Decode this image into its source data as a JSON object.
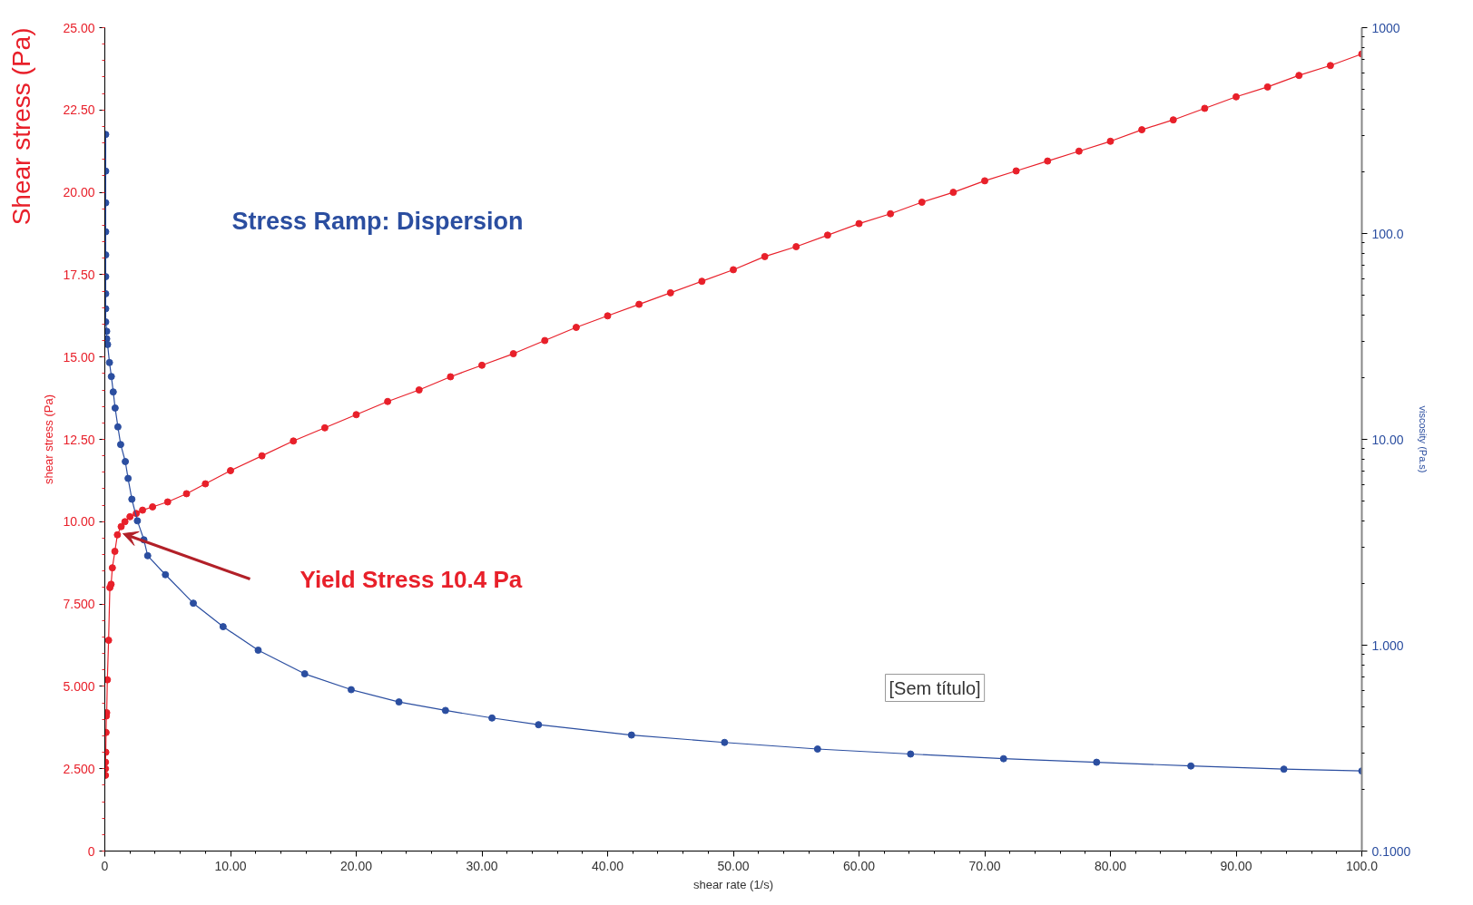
{
  "chart_data": {
    "type": "line",
    "xlabel": "shear rate (1/s)",
    "ylabel": "shear stress (Pa)",
    "y2label": "viscosity (Pa.s)",
    "xlim": [
      0,
      100
    ],
    "xticks": [
      0,
      {
        "value": 10,
        "label": "10.00"
      },
      {
        "value": 20,
        "label": "20.00"
      },
      {
        "value": 30,
        "label": "30.00"
      },
      {
        "value": 40,
        "label": "40.00"
      },
      {
        "value": 50,
        "label": "50.00"
      },
      {
        "value": 60,
        "label": "60.00"
      },
      {
        "value": 70,
        "label": "70.00"
      },
      {
        "value": 80,
        "label": "80.00"
      },
      {
        "value": 90,
        "label": "90.00"
      },
      {
        "value": 100,
        "label": "100.0"
      }
    ],
    "ylim": [
      0,
      25
    ],
    "yticks": [
      0,
      {
        "value": 2.5,
        "label": "2.500"
      },
      {
        "value": 5,
        "label": "5.000"
      },
      {
        "value": 7.5,
        "label": "7.500"
      },
      {
        "value": 10,
        "label": "10.00"
      },
      {
        "value": 12.5,
        "label": "12.50"
      },
      {
        "value": 15,
        "label": "15.00"
      },
      {
        "value": 17.5,
        "label": "17.50"
      },
      {
        "value": 20,
        "label": "20.00"
      },
      {
        "value": 22.5,
        "label": "22.50"
      },
      {
        "value": 25,
        "label": "25.00"
      }
    ],
    "y2lim": [
      0.1,
      1000
    ],
    "y2ticks": [
      {
        "value": 0.1,
        "label": "0.1000"
      },
      {
        "value": 1,
        "label": "1.000"
      },
      {
        "value": 10,
        "label": "10.00"
      },
      {
        "value": 100,
        "label": "100.0"
      },
      1000
    ],
    "log": "y2",
    "marker": "circle",
    "line_style": "solid",
    "series": [
      {
        "color": "#e8202a",
        "x": [
          0.05,
          0.05,
          0.05,
          0.08,
          0.1,
          0.12,
          0.15,
          0.2,
          0.3,
          0.4,
          0.5,
          0.6,
          0.8,
          1.0,
          1.3,
          1.6,
          2.0,
          2.5,
          3.0,
          3.8,
          5.0,
          6.5,
          8,
          10,
          12.5,
          15,
          17.5,
          20,
          22.5,
          25,
          27.5,
          30,
          32.5,
          35,
          37.5,
          40,
          42.5,
          45,
          47.5,
          50,
          52.5,
          55,
          57.5,
          60,
          62.5,
          65,
          67.5,
          70,
          72.5,
          75,
          77.5,
          80,
          82.5,
          85,
          87.5,
          90,
          92.5,
          95,
          97.5,
          100
        ],
        "values": [
          2.3,
          2.5,
          2.7,
          3.0,
          3.6,
          4.1,
          4.2,
          5.2,
          6.4,
          8.0,
          8.1,
          8.6,
          9.1,
          9.6,
          9.85,
          10.0,
          10.15,
          10.25,
          10.35,
          10.45,
          10.6,
          10.85,
          11.15,
          11.55,
          12.0,
          12.45,
          12.85,
          13.25,
          13.65,
          14.0,
          14.4,
          14.75,
          15.1,
          15.5,
          15.9,
          16.25,
          16.6,
          16.95,
          17.3,
          17.65,
          18.05,
          18.35,
          18.7,
          19.05,
          19.35,
          19.7,
          20.0,
          20.35,
          20.65,
          20.95,
          21.25,
          21.55,
          21.9,
          22.2,
          22.55,
          22.9,
          23.2,
          23.55,
          23.85,
          24.2
        ]
      },
      {
        "color": "#2b4ea0",
        "axis": "y2",
        "x": [
          0.07,
          0.07,
          0.07,
          0.07,
          0.07,
          0.07,
          0.07,
          0.07,
          0.07,
          0.15,
          0.15,
          0.22,
          0.37,
          0.52,
          0.67,
          0.82,
          1.04,
          1.26,
          1.63,
          1.85,
          2.15,
          2.59,
          3.11,
          3.41,
          4.82,
          7.04,
          9.41,
          12.2,
          15.9,
          19.6,
          23.4,
          27.1,
          30.8,
          34.5,
          41.9,
          49.3,
          56.7,
          64.1,
          71.5,
          78.9,
          86.4,
          93.8,
          100
        ],
        "values": [
          303,
          201,
          141,
          102,
          78.7,
          61.7,
          51.0,
          43.1,
          37.2,
          33.5,
          30.8,
          28.9,
          23.6,
          20.2,
          17.0,
          14.2,
          11.5,
          9.44,
          7.8,
          6.46,
          5.12,
          4.02,
          3.25,
          2.72,
          2.2,
          1.6,
          1.23,
          0.946,
          0.726,
          0.608,
          0.53,
          0.482,
          0.443,
          0.411,
          0.366,
          0.337,
          0.313,
          0.296,
          0.281,
          0.27,
          0.259,
          0.25,
          0.245
        ]
      }
    ],
    "annotations": [
      "Shear stress (Pa)",
      "Stress Ramp:  Dispersion",
      "Yield Stress  10.4 Pa",
      "[Sem título]"
    ]
  }
}
